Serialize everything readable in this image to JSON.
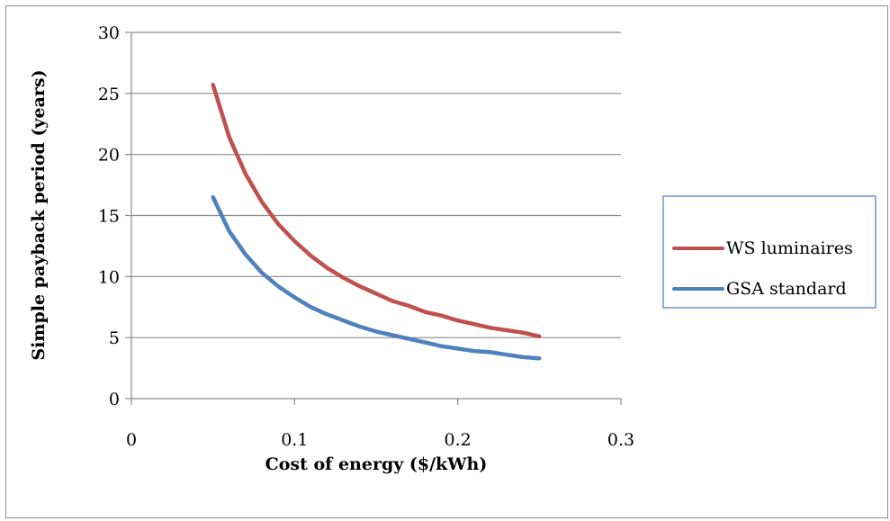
{
  "chart_data": {
    "type": "line",
    "title": "",
    "xlabel": "Cost of energy ($/kWh)",
    "ylabel": "Simple payback period (years)",
    "xlim": [
      0,
      0.3
    ],
    "ylim": [
      0,
      30
    ],
    "x_ticks": [
      "0",
      "0.1",
      "0.2",
      "0.3"
    ],
    "y_ticks": [
      "0",
      "5",
      "10",
      "15",
      "20",
      "25",
      "30"
    ],
    "grid": "horizontal",
    "legend_position": "right",
    "x": [
      0.05,
      0.06,
      0.07,
      0.08,
      0.09,
      0.1,
      0.11,
      0.12,
      0.13,
      0.14,
      0.15,
      0.16,
      0.17,
      0.18,
      0.19,
      0.2,
      0.21,
      0.22,
      0.23,
      0.24,
      0.25
    ],
    "series": [
      {
        "name": "WS luminaires",
        "color": "#c0504d",
        "values": [
          25.7,
          21.4,
          18.4,
          16.1,
          14.3,
          12.9,
          11.7,
          10.7,
          9.9,
          9.2,
          8.6,
          8.0,
          7.6,
          7.1,
          6.8,
          6.4,
          6.1,
          5.8,
          5.6,
          5.4,
          5.1
        ]
      },
      {
        "name": "GSA standard",
        "color": "#4f81bd",
        "values": [
          16.5,
          13.7,
          11.8,
          10.3,
          9.2,
          8.3,
          7.5,
          6.9,
          6.4,
          5.9,
          5.5,
          5.2,
          4.9,
          4.6,
          4.3,
          4.1,
          3.9,
          3.8,
          3.6,
          3.4,
          3.3
        ]
      }
    ]
  }
}
